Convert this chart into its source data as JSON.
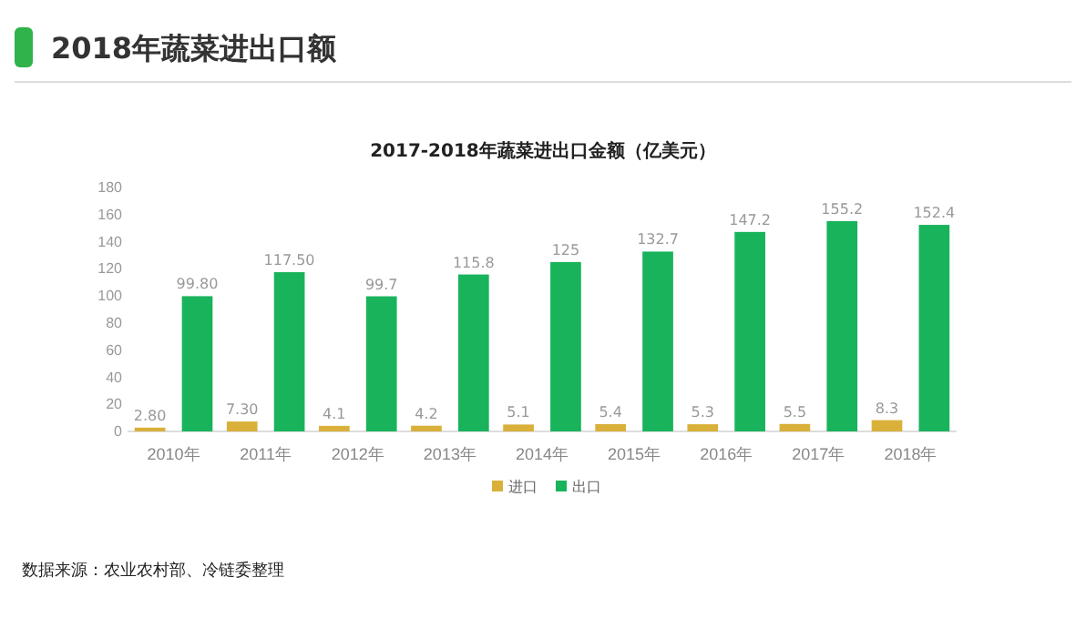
{
  "chart_data": {
    "type": "bar",
    "title": "2017-2018年蔬菜进出口金额（亿美元）",
    "subtitle": "2018年蔬菜进出口额",
    "categories": [
      "2010年",
      "2011年",
      "2012年",
      "2013年",
      "2014年",
      "2015年",
      "2016年",
      "2017年",
      "2018年"
    ],
    "series": [
      {
        "name": "进口",
        "color": "#d9b13a",
        "values": [
          2.8,
          7.3,
          4.1,
          4.2,
          5.1,
          5.4,
          5.3,
          5.5,
          8.3
        ],
        "value_labels": [
          "2.80",
          "7.30",
          "4.1",
          "4.2",
          "5.1",
          "5.4",
          "5.3",
          "5.5",
          "8.3"
        ]
      },
      {
        "name": "出口",
        "color": "#19b35c",
        "values": [
          99.8,
          117.5,
          99.7,
          115.8,
          125,
          132.7,
          147.2,
          155.2,
          152.4
        ],
        "value_labels": [
          "99.80",
          "117.50",
          "99.7",
          "115.8",
          "125",
          "132.7",
          "147.2",
          "155.2",
          "152.4"
        ]
      }
    ],
    "ylim": [
      0,
      180
    ],
    "yticks": [
      0,
      20,
      40,
      60,
      80,
      100,
      120,
      140,
      160,
      180
    ],
    "grid": false,
    "legend": "bottom",
    "annotations": [
      "数据来源：农业农村部、冷链委整理"
    ]
  }
}
